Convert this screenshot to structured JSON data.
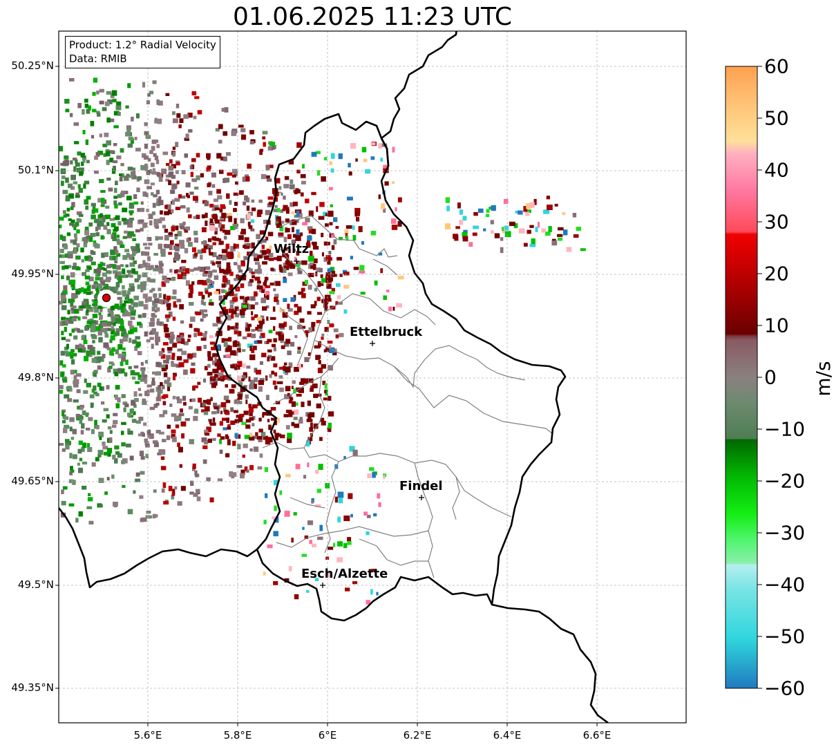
{
  "title": "01.06.2025 11:23 UTC",
  "info": {
    "product": "Product: 1.2° Radial Velocity",
    "data": "Data: RMIB"
  },
  "lat_ticks": [
    "50.25°N",
    "50.1°N",
    "49.95°N",
    "49.8°N",
    "49.65°N",
    "49.5°N",
    "49.35°N"
  ],
  "lon_ticks": [
    "5.6°E",
    "5.8°E",
    "6°E",
    "6.2°E",
    "6.4°E",
    "6.6°E"
  ],
  "cities": [
    {
      "name": "Wiltz"
    },
    {
      "name": "Ettelbruck"
    },
    {
      "name": "Findel"
    },
    {
      "name": "Esch/Alzette"
    }
  ],
  "colorbar": {
    "unit": "m/s",
    "ticks": [
      "60",
      "50",
      "40",
      "30",
      "20",
      "10",
      "0",
      "−10",
      "−20",
      "−30",
      "−40",
      "−50",
      "−60"
    ]
  },
  "colors": {
    "border": "#000000",
    "canton": "#808080",
    "radar_site": "#e00000"
  }
}
